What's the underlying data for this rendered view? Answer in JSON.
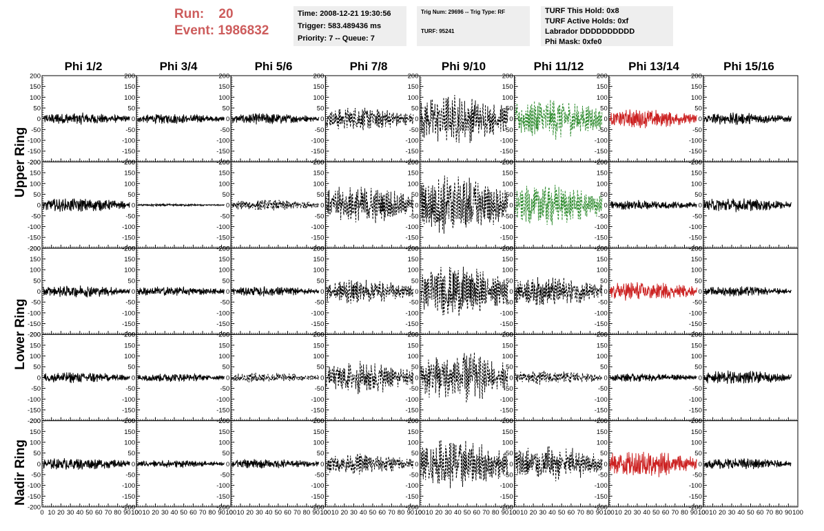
{
  "header": {
    "run_label": "Run:",
    "run_value": "20",
    "event_label": "Event:",
    "event_value": "1986832"
  },
  "info_box_1": {
    "time": "Time: 2008-12-21 19:30:56",
    "trigger": "Trigger: 583.489436 ms",
    "priority": "Priority: 7 -- Queue: 7"
  },
  "info_box_2": {
    "trig": "Trig Num: 29696 -- Trig Type: RF",
    "turf": "TURF: 95241"
  },
  "info_box_3": {
    "hold": "TURF This Hold: 0x8",
    "active": "TURF Active Holds: 0xf",
    "labrador": "Labrador DDDDDDDDDD",
    "mask": "Phi Mask: 0xfe0"
  },
  "columns": [
    "Phi 1/2",
    "Phi 3/4",
    "Phi 5/6",
    "Phi 7/8",
    "Phi 9/10",
    "Phi 11/12",
    "Phi 13/14",
    "Phi 15/16"
  ],
  "rings": [
    "Upper Ring",
    "Lower Ring",
    "Nadir Ring"
  ],
  "colors": {
    "title_red": "#cd5c5c",
    "box_bg": "#eeeeee",
    "trace_black": "#000000",
    "trace_green": "#2e8b2e",
    "trace_red": "#cc2222"
  },
  "chart_data": {
    "type": "line",
    "xlim": [
      0,
      100
    ],
    "ylim": [
      -200,
      200
    ],
    "x_ticks": [
      0,
      10,
      20,
      30,
      40,
      50,
      60,
      70,
      80,
      90,
      100
    ],
    "x_tick_labels": [
      "0",
      "10",
      "20",
      "30",
      "40",
      "50",
      "60",
      "70",
      "80",
      "90",
      "100"
    ],
    "y_ticks": [
      200,
      150,
      100,
      50,
      0,
      -50,
      -100,
      -150,
      -200
    ],
    "y_tick_labels": [
      "200",
      "150",
      "100",
      "50",
      "0",
      "-50",
      "-100",
      "-150",
      "-200"
    ],
    "rows": [
      {
        "name": "upper-1",
        "amplitudes": [
          22,
          18,
          20,
          42,
          90,
          75,
          35,
          22
        ],
        "styles": [
          "solid",
          "solid",
          "solid",
          "dashed",
          "dashed",
          "dashed",
          "solid",
          "solid"
        ],
        "colors": [
          "trace_black",
          "trace_black",
          "trace_black",
          "trace_black",
          "trace_black",
          "trace_green",
          "trace_red",
          "trace_black"
        ]
      },
      {
        "name": "upper-2",
        "amplitudes": [
          25,
          4,
          20,
          70,
          110,
          75,
          18,
          25
        ],
        "styles": [
          "solid",
          "solid",
          "dashed",
          "dashed",
          "dashed",
          "dashed",
          "solid",
          "solid"
        ],
        "colors": [
          "trace_black",
          "trace_black",
          "trace_black",
          "trace_black",
          "trace_black",
          "trace_green",
          "trace_black",
          "trace_black"
        ]
      },
      {
        "name": "lower-1",
        "amplitudes": [
          22,
          18,
          18,
          45,
          95,
          55,
          35,
          18
        ],
        "styles": [
          "solid",
          "solid",
          "solid",
          "dashed",
          "dashed",
          "dashed",
          "solid",
          "solid"
        ],
        "colors": [
          "trace_black",
          "trace_black",
          "trace_black",
          "trace_black",
          "trace_black",
          "trace_black",
          "trace_red",
          "trace_black"
        ]
      },
      {
        "name": "lower-2",
        "amplitudes": [
          20,
          15,
          18,
          60,
          100,
          25,
          15,
          25
        ],
        "styles": [
          "solid",
          "solid",
          "dashed",
          "dashed",
          "dashed",
          "dashed",
          "solid",
          "solid"
        ],
        "colors": [
          "trace_black",
          "trace_black",
          "trace_black",
          "trace_black",
          "trace_black",
          "trace_black",
          "trace_black",
          "trace_black"
        ]
      },
      {
        "name": "nadir",
        "amplitudes": [
          22,
          14,
          18,
          38,
          90,
          65,
          50,
          20
        ],
        "styles": [
          "solid",
          "solid",
          "solid",
          "dashed",
          "dashed",
          "dashed",
          "solid",
          "solid"
        ],
        "colors": [
          "trace_black",
          "trace_black",
          "trace_black",
          "trace_black",
          "trace_black",
          "trace_black",
          "trace_red",
          "trace_black"
        ]
      }
    ]
  }
}
